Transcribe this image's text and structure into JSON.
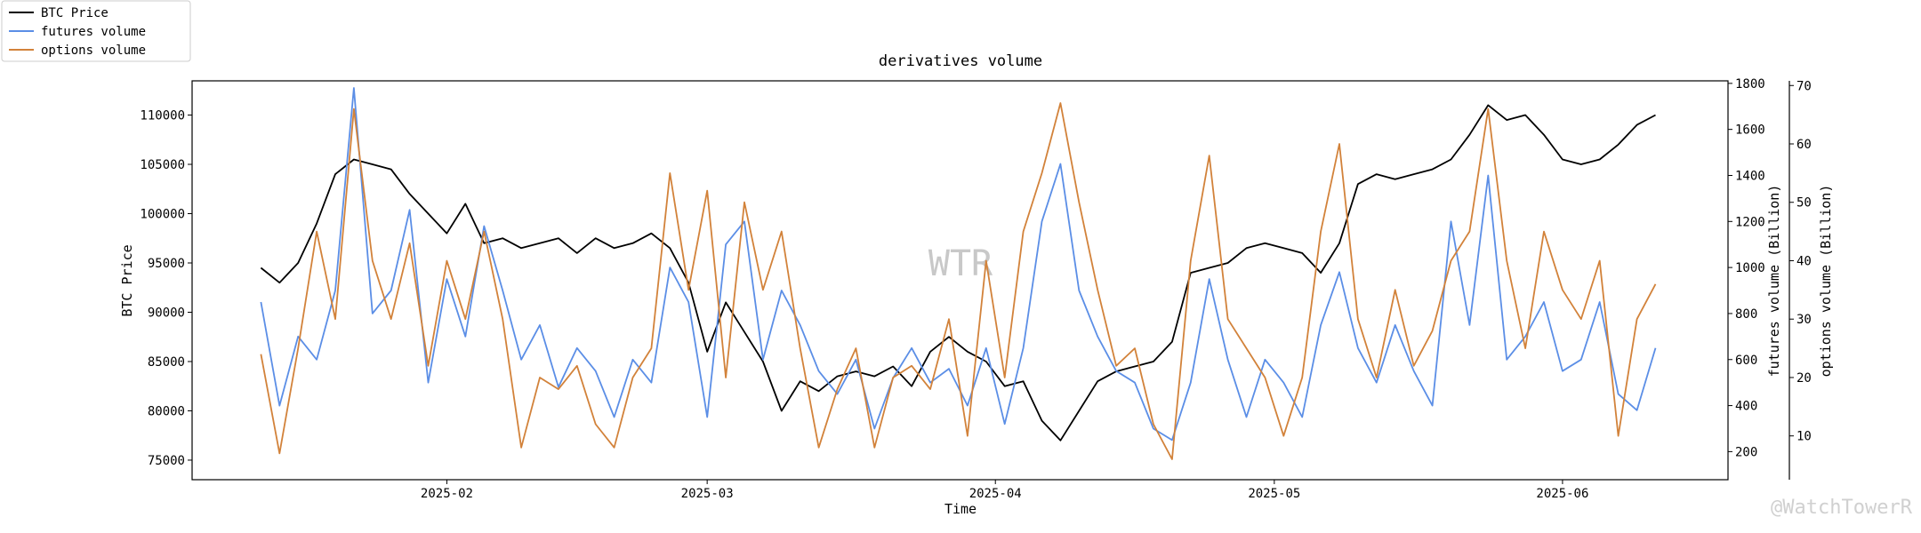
{
  "chart_data": {
    "type": "line",
    "title": "derivatives volume",
    "xlabel": "Time",
    "ylabel": "BTC Price",
    "y2label": "futures volume (Billion)",
    "y3label": "options volume (Billion)",
    "watermark": "WTR",
    "credit": "@WatchTowerR",
    "x": [
      12,
      14,
      16,
      18,
      20,
      22,
      24,
      26,
      28,
      30,
      32,
      34,
      36,
      38,
      40,
      42,
      44,
      46,
      48,
      50,
      52,
      54,
      56,
      58,
      60,
      62,
      64,
      66,
      68,
      70,
      72,
      74,
      76,
      78,
      80,
      82,
      84,
      86,
      88,
      90,
      92,
      94,
      96,
      98,
      100,
      102,
      104,
      106,
      108,
      110,
      112,
      114,
      116,
      118,
      120,
      122,
      124,
      126,
      128,
      130,
      132,
      134,
      136,
      138,
      140,
      142,
      144,
      146,
      148,
      150,
      152,
      154,
      156,
      158,
      160,
      162
    ],
    "xlim": [
      4.6,
      169.8
    ],
    "xticks": [
      {
        "value": 32,
        "label": "2025-02"
      },
      {
        "value": 60,
        "label": "2025-03"
      },
      {
        "value": 91,
        "label": "2025-04"
      },
      {
        "value": 121,
        "label": "2025-05"
      },
      {
        "value": 152,
        "label": "2025-06"
      }
    ],
    "ylim": [
      73015,
      113470
    ],
    "yticks": [
      75000,
      80000,
      85000,
      90000,
      95000,
      100000,
      105000,
      110000
    ],
    "y2lim": [
      78,
      1811
    ],
    "y2ticks": [
      200,
      400,
      600,
      800,
      1000,
      1200,
      1400,
      1600,
      1800
    ],
    "y3lim": [
      2.5,
      70.8
    ],
    "y3ticks": [
      10,
      20,
      30,
      40,
      50,
      60,
      70
    ],
    "legend": "upper left",
    "series": [
      {
        "name": "BTC Price",
        "color": "#000000",
        "axis": "y",
        "values": [
          94500,
          93000,
          95000,
          99000,
          104000,
          105500,
          105000,
          104500,
          102000,
          100000,
          98000,
          101000,
          97000,
          97500,
          96500,
          97000,
          97500,
          96000,
          97500,
          96500,
          97000,
          98000,
          96500,
          93000,
          86000,
          91000,
          88000,
          85000,
          80000,
          83000,
          82000,
          83500,
          84000,
          83500,
          84500,
          82500,
          86000,
          87500,
          86000,
          85000,
          82500,
          83000,
          79000,
          77000,
          80000,
          83000,
          84000,
          84500,
          85000,
          87000,
          94000,
          94500,
          95000,
          96500,
          97000,
          96500,
          96000,
          94000,
          97000,
          103000,
          104000,
          103500,
          104000,
          104500,
          105500,
          108000,
          111000,
          109500,
          110000,
          108000,
          105500,
          105000,
          105500,
          107000,
          109000,
          110000
        ]
      },
      {
        "name": "futures volume",
        "color": "#5b8ee6",
        "axis": "y2",
        "values": [
          850,
          400,
          700,
          600,
          900,
          1780,
          800,
          900,
          1250,
          500,
          950,
          700,
          1180,
          900,
          600,
          750,
          480,
          650,
          550,
          350,
          600,
          500,
          1000,
          850,
          350,
          1100,
          1200,
          600,
          900,
          750,
          550,
          450,
          600,
          300,
          520,
          650,
          500,
          560,
          400,
          650,
          320,
          650,
          1200,
          1450,
          900,
          700,
          550,
          500,
          300,
          250,
          500,
          950,
          600,
          350,
          600,
          500,
          350,
          750,
          980,
          650,
          500,
          750,
          550,
          400,
          1200,
          750,
          1400,
          600,
          700,
          850,
          550,
          600,
          850,
          450,
          380,
          650
        ]
      },
      {
        "name": "options volume",
        "color": "#d2823a",
        "axis": "y3",
        "values": [
          24,
          7,
          25,
          45,
          30,
          66,
          40,
          30,
          43,
          22,
          40,
          30,
          45,
          30,
          8,
          20,
          18,
          22,
          12,
          8,
          20,
          25,
          55,
          35,
          52,
          20,
          50,
          35,
          45,
          25,
          8,
          18,
          25,
          8,
          20,
          22,
          18,
          30,
          10,
          40,
          20,
          45,
          55,
          67,
          50,
          35,
          22,
          25,
          12,
          6,
          40,
          58,
          30,
          25,
          20,
          10,
          20,
          45,
          60,
          30,
          20,
          35,
          22,
          28,
          40,
          45,
          66,
          40,
          25,
          45,
          35,
          30,
          40,
          10,
          30,
          36
        ]
      }
    ]
  }
}
